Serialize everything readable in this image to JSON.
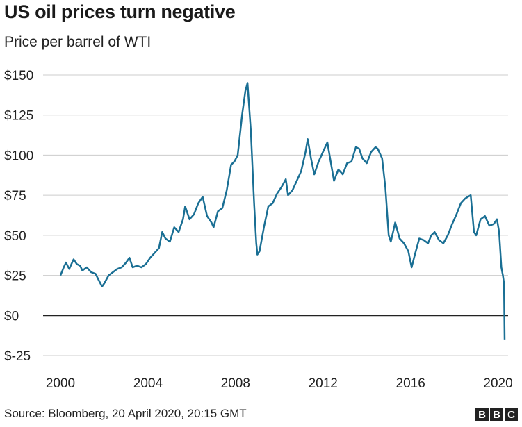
{
  "title": "US oil prices turn negative",
  "subtitle": "Price per barrel of WTI",
  "source": "Source: Bloomberg, 20 April 2020, 20:15 GMT",
  "logo": [
    "B",
    "B",
    "C"
  ],
  "colors": {
    "line": "#1a6f94",
    "grid": "#cccccc",
    "zero": "#222222"
  },
  "chart_data": {
    "type": "line",
    "title": "US oil prices turn negative",
    "subtitle": "Price per barrel of WTI",
    "xlabel": "",
    "ylabel": "",
    "xlim": [
      2000,
      2020.3
    ],
    "ylim": [
      -25,
      150
    ],
    "y_ticks": [
      150,
      125,
      100,
      75,
      50,
      25,
      0,
      -25
    ],
    "y_tick_labels": [
      "$150",
      "$125",
      "$100",
      "$75",
      "$50",
      "$25",
      "$0",
      "$-25"
    ],
    "x_ticks": [
      2000,
      2004,
      2008,
      2012,
      2016,
      2020
    ],
    "x_tick_labels": [
      "2000",
      "2004",
      "2008",
      "2012",
      "2016",
      "2020"
    ],
    "grid": true,
    "series": [
      {
        "x": [
          2000.0,
          2000.15,
          2000.25,
          2000.4,
          2000.6,
          2000.75,
          2000.9,
          2001.0,
          2001.2,
          2001.4,
          2001.6,
          2001.75,
          2001.9,
          2002.0,
          2002.2,
          2002.4,
          2002.6,
          2002.8,
          2003.0,
          2003.15,
          2003.3,
          2003.5,
          2003.7,
          2003.9,
          2004.1,
          2004.3,
          2004.5,
          2004.65,
          2004.8,
          2005.0,
          2005.2,
          2005.4,
          2005.6,
          2005.7,
          2005.9,
          2006.1,
          2006.3,
          2006.5,
          2006.7,
          2006.9,
          2007.0,
          2007.2,
          2007.4,
          2007.6,
          2007.8,
          2007.95,
          2008.1,
          2008.3,
          2008.45,
          2008.55,
          2008.7,
          2008.85,
          2008.95,
          2009.0,
          2009.1,
          2009.3,
          2009.5,
          2009.7,
          2009.9,
          2010.1,
          2010.3,
          2010.4,
          2010.6,
          2010.8,
          2011.0,
          2011.2,
          2011.3,
          2011.45,
          2011.6,
          2011.8,
          2012.0,
          2012.2,
          2012.4,
          2012.5,
          2012.7,
          2012.9,
          2013.1,
          2013.3,
          2013.5,
          2013.65,
          2013.8,
          2014.0,
          2014.2,
          2014.4,
          2014.5,
          2014.7,
          2014.85,
          2015.0,
          2015.1,
          2015.3,
          2015.5,
          2015.7,
          2015.9,
          2016.05,
          2016.2,
          2016.4,
          2016.6,
          2016.8,
          2016.95,
          2017.1,
          2017.3,
          2017.5,
          2017.7,
          2017.9,
          2018.1,
          2018.3,
          2018.5,
          2018.75,
          2018.9,
          2019.0,
          2019.2,
          2019.4,
          2019.6,
          2019.8,
          2019.95,
          2020.05,
          2020.15,
          2020.22,
          2020.27,
          2020.3
        ],
        "values": [
          25,
          30,
          33,
          29,
          35,
          32,
          31,
          28,
          30,
          27,
          26,
          22,
          18,
          20,
          25,
          27,
          29,
          30,
          33,
          36,
          30,
          31,
          30,
          32,
          36,
          39,
          42,
          52,
          48,
          46,
          55,
          52,
          60,
          68,
          60,
          63,
          70,
          74,
          62,
          58,
          55,
          65,
          67,
          78,
          94,
          96,
          100,
          125,
          140,
          145,
          115,
          70,
          45,
          38,
          40,
          55,
          68,
          70,
          76,
          80,
          85,
          75,
          78,
          84,
          90,
          102,
          110,
          98,
          88,
          96,
          102,
          108,
          92,
          84,
          91,
          88,
          95,
          96,
          105,
          104,
          98,
          95,
          102,
          105,
          104,
          98,
          80,
          50,
          46,
          58,
          48,
          45,
          40,
          30,
          38,
          48,
          47,
          45,
          50,
          52,
          47,
          45,
          50,
          57,
          63,
          70,
          73,
          75,
          52,
          50,
          60,
          62,
          56,
          57,
          60,
          52,
          30,
          25,
          20,
          -15
        ]
      }
    ]
  }
}
